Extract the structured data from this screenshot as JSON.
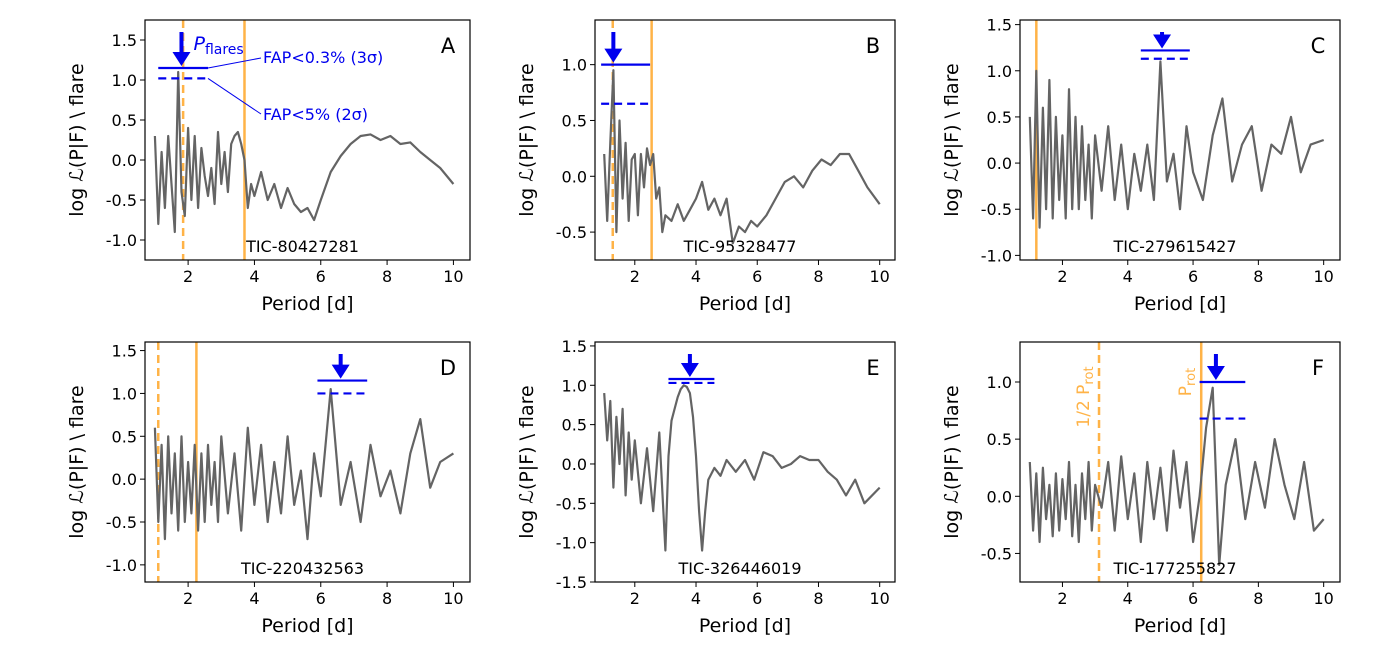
{
  "chart_data": [
    {
      "type": "line",
      "panel_letter": "A",
      "target": "TIC-80427281",
      "xlabel": "Period [d]",
      "ylabel": "log ℒ(P|F) \\ flare",
      "xlim": [
        0.7,
        10.5
      ],
      "ylim": [
        -1.25,
        1.75
      ],
      "xticks": [
        2,
        4,
        6,
        8,
        10
      ],
      "yticks": [
        -1.0,
        -0.5,
        0.0,
        0.5,
        1.0,
        1.5
      ],
      "periodogram": {
        "x": [
          1.0,
          1.1,
          1.2,
          1.3,
          1.4,
          1.5,
          1.6,
          1.7,
          1.8,
          1.9,
          2.0,
          2.1,
          2.2,
          2.3,
          2.4,
          2.5,
          2.6,
          2.7,
          2.8,
          2.9,
          3.0,
          3.1,
          3.2,
          3.3,
          3.4,
          3.5,
          3.6,
          3.7,
          3.8,
          3.9,
          4.0,
          4.2,
          4.4,
          4.6,
          4.8,
          5.0,
          5.2,
          5.4,
          5.6,
          5.8,
          6.0,
          6.3,
          6.6,
          6.9,
          7.2,
          7.5,
          7.8,
          8.1,
          8.4,
          8.7,
          9.0,
          9.3,
          9.6,
          10.0
        ],
        "y": [
          0.3,
          -0.8,
          0.1,
          -0.6,
          0.3,
          -0.3,
          -0.9,
          1.1,
          -0.4,
          -0.7,
          0.4,
          -0.5,
          0.3,
          -0.6,
          0.15,
          -0.2,
          -0.45,
          -0.1,
          -0.55,
          0.35,
          -0.3,
          0.1,
          -0.4,
          0.2,
          0.3,
          0.35,
          0.2,
          0.0,
          -0.6,
          -0.3,
          -0.45,
          -0.15,
          -0.5,
          -0.3,
          -0.6,
          -0.35,
          -0.55,
          -0.65,
          -0.6,
          -0.75,
          -0.5,
          -0.15,
          0.05,
          0.2,
          0.3,
          0.32,
          0.25,
          0.3,
          0.2,
          0.22,
          0.1,
          0.0,
          -0.1,
          -0.3
        ]
      },
      "fap_3sigma": 1.15,
      "fap_2sigma": 1.02,
      "fap_span": [
        1.1,
        2.6
      ],
      "p_flares": 1.8,
      "p_rot_solid": 3.7,
      "p_rot_dashed": 1.85,
      "annotations": {
        "p_flares": "P",
        "p_flares_sub": "flares",
        "fap_3sigma": "FAP<0.3% (3σ)",
        "fap_2sigma": "FAP<5% (2σ)"
      }
    },
    {
      "type": "line",
      "panel_letter": "B",
      "target": "TIC-95328477",
      "xlabel": "Period [d]",
      "ylabel": "log ℒ(P|F) \\ flare",
      "xlim": [
        0.7,
        10.5
      ],
      "ylim": [
        -0.75,
        1.4
      ],
      "xticks": [
        2,
        4,
        6,
        8,
        10
      ],
      "yticks": [
        -0.5,
        0.0,
        0.5,
        1.0
      ],
      "periodogram": {
        "x": [
          1.0,
          1.1,
          1.2,
          1.3,
          1.4,
          1.5,
          1.6,
          1.7,
          1.8,
          1.9,
          2.0,
          2.1,
          2.2,
          2.3,
          2.4,
          2.5,
          2.6,
          2.7,
          2.8,
          2.9,
          3.0,
          3.2,
          3.4,
          3.6,
          3.8,
          4.0,
          4.2,
          4.4,
          4.6,
          4.8,
          5.0,
          5.2,
          5.4,
          5.6,
          5.8,
          6.0,
          6.3,
          6.6,
          6.9,
          7.2,
          7.5,
          7.8,
          8.1,
          8.4,
          8.7,
          9.0,
          9.3,
          9.6,
          10.0
        ],
        "y": [
          0.2,
          -0.4,
          0.3,
          0.95,
          -0.5,
          0.5,
          -0.2,
          0.3,
          -0.4,
          0.15,
          0.2,
          -0.35,
          0.2,
          -0.1,
          0.25,
          0.1,
          0.2,
          -0.2,
          -0.1,
          -0.5,
          -0.35,
          -0.4,
          -0.25,
          -0.4,
          -0.3,
          -0.2,
          -0.05,
          -0.3,
          -0.2,
          -0.35,
          -0.2,
          -0.6,
          -0.45,
          -0.5,
          -0.4,
          -0.45,
          -0.35,
          -0.2,
          -0.05,
          0.0,
          -0.1,
          0.05,
          0.15,
          0.1,
          0.2,
          0.2,
          0.05,
          -0.1,
          -0.25
        ]
      },
      "fap_3sigma": 1.0,
      "fap_2sigma": 0.65,
      "fap_span": [
        0.9,
        2.5
      ],
      "p_flares": 1.3,
      "p_rot_solid": 2.55,
      "p_rot_dashed": 1.28
    },
    {
      "type": "line",
      "panel_letter": "C",
      "target": "TIC-279615427",
      "xlabel": "Period [d]",
      "ylabel": "log ℒ(P|F) \\ flare",
      "xlim": [
        0.7,
        10.5
      ],
      "ylim": [
        -1.05,
        1.55
      ],
      "xticks": [
        2,
        4,
        6,
        8,
        10
      ],
      "yticks": [
        -1.0,
        -0.5,
        0.0,
        0.5,
        1.0,
        1.5
      ],
      "periodogram": {
        "x": [
          1.0,
          1.1,
          1.2,
          1.3,
          1.4,
          1.5,
          1.6,
          1.7,
          1.8,
          1.9,
          2.0,
          2.1,
          2.2,
          2.3,
          2.4,
          2.5,
          2.6,
          2.7,
          2.8,
          2.9,
          3.0,
          3.2,
          3.4,
          3.6,
          3.8,
          4.0,
          4.2,
          4.4,
          4.6,
          4.8,
          5.0,
          5.2,
          5.4,
          5.6,
          5.8,
          6.0,
          6.3,
          6.6,
          6.9,
          7.2,
          7.5,
          7.8,
          8.1,
          8.4,
          8.7,
          9.0,
          9.3,
          9.6,
          10.0
        ],
        "y": [
          0.5,
          -0.6,
          1.0,
          -0.7,
          0.6,
          -0.5,
          0.9,
          -0.6,
          0.5,
          -0.4,
          0.3,
          -0.6,
          0.8,
          -0.5,
          0.5,
          -0.5,
          0.4,
          -0.4,
          0.2,
          -0.6,
          0.3,
          -0.3,
          0.4,
          -0.4,
          0.2,
          -0.5,
          0.1,
          -0.3,
          0.2,
          -0.4,
          1.1,
          -0.2,
          0.1,
          -0.5,
          0.4,
          -0.1,
          -0.4,
          0.3,
          0.7,
          -0.2,
          0.2,
          0.4,
          -0.3,
          0.2,
          0.1,
          0.5,
          -0.1,
          0.2,
          0.25
        ]
      },
      "fap_3sigma": 1.22,
      "fap_2sigma": 1.13,
      "fap_span": [
        4.4,
        5.9
      ],
      "p_flares": 5.05,
      "p_rot_solid": 1.2,
      "p_rot_dashed": null
    },
    {
      "type": "line",
      "panel_letter": "D",
      "target": "TIC-220432563",
      "xlabel": "Period [d]",
      "ylabel": "log ℒ(P|F) \\ flare",
      "xlim": [
        0.7,
        10.5
      ],
      "ylim": [
        -1.2,
        1.6
      ],
      "xticks": [
        2,
        4,
        6,
        8,
        10
      ],
      "yticks": [
        -1.0,
        -0.5,
        0.0,
        0.5,
        1.0,
        1.5
      ],
      "periodogram": {
        "x": [
          1.0,
          1.1,
          1.2,
          1.3,
          1.4,
          1.5,
          1.6,
          1.7,
          1.8,
          1.9,
          2.0,
          2.1,
          2.2,
          2.3,
          2.4,
          2.5,
          2.6,
          2.7,
          2.8,
          2.9,
          3.0,
          3.2,
          3.4,
          3.6,
          3.8,
          4.0,
          4.2,
          4.4,
          4.6,
          4.8,
          5.0,
          5.2,
          5.4,
          5.6,
          5.8,
          6.0,
          6.3,
          6.6,
          6.9,
          7.2,
          7.5,
          7.8,
          8.1,
          8.4,
          8.7,
          9.0,
          9.3,
          9.6,
          10.0
        ],
        "y": [
          0.6,
          -0.5,
          0.4,
          -0.7,
          0.5,
          -0.4,
          0.3,
          -0.6,
          0.5,
          -0.5,
          0.2,
          -0.4,
          0.4,
          -0.6,
          0.3,
          -0.5,
          0.4,
          -0.3,
          0.2,
          -0.5,
          0.5,
          -0.4,
          0.3,
          -0.6,
          0.6,
          -0.3,
          0.4,
          -0.5,
          0.2,
          -0.4,
          0.5,
          -0.3,
          0.1,
          -0.7,
          0.3,
          -0.2,
          1.05,
          -0.3,
          0.2,
          -0.5,
          0.4,
          -0.2,
          0.1,
          -0.4,
          0.3,
          0.7,
          -0.1,
          0.2,
          0.3
        ]
      },
      "fap_3sigma": 1.15,
      "fap_2sigma": 1.0,
      "fap_span": [
        5.9,
        7.4
      ],
      "p_flares": 6.6,
      "p_rot_solid": 2.25,
      "p_rot_dashed": 1.1
    },
    {
      "type": "line",
      "panel_letter": "E",
      "target": "TIC-326446019",
      "xlabel": "Period [d]",
      "ylabel": "log ℒ(P|F) \\ flare",
      "xlim": [
        0.7,
        10.5
      ],
      "ylim": [
        -1.5,
        1.55
      ],
      "xticks": [
        2,
        4,
        6,
        8,
        10
      ],
      "yticks": [
        -1.5,
        -1.0,
        -0.5,
        0.0,
        0.5,
        1.0,
        1.5
      ],
      "periodogram": {
        "x": [
          1.0,
          1.1,
          1.2,
          1.3,
          1.4,
          1.5,
          1.6,
          1.7,
          1.8,
          1.9,
          2.0,
          2.2,
          2.4,
          2.6,
          2.8,
          3.0,
          3.1,
          3.2,
          3.3,
          3.4,
          3.5,
          3.6,
          3.7,
          3.8,
          3.9,
          4.0,
          4.1,
          4.2,
          4.3,
          4.4,
          4.6,
          4.8,
          5.0,
          5.3,
          5.6,
          5.9,
          6.2,
          6.5,
          6.8,
          7.1,
          7.4,
          7.7,
          8.0,
          8.3,
          8.6,
          8.9,
          9.2,
          9.5,
          10.0
        ],
        "y": [
          0.9,
          0.3,
          0.8,
          -0.3,
          0.6,
          0.0,
          0.7,
          -0.4,
          0.4,
          -0.2,
          0.3,
          -0.5,
          0.2,
          -0.6,
          0.4,
          -1.1,
          0.1,
          0.55,
          0.7,
          0.85,
          0.95,
          1.0,
          0.98,
          0.9,
          0.6,
          0.1,
          -0.6,
          -1.1,
          -0.6,
          -0.2,
          -0.05,
          -0.15,
          0.05,
          -0.1,
          0.05,
          -0.2,
          0.15,
          0.1,
          -0.05,
          0.0,
          0.1,
          0.05,
          0.05,
          -0.1,
          -0.2,
          -0.4,
          -0.2,
          -0.5,
          -0.3
        ]
      },
      "fap_3sigma": 1.08,
      "fap_2sigma": 1.03,
      "fap_span": [
        3.1,
        4.6
      ],
      "p_flares": 3.8,
      "p_rot_solid": null,
      "p_rot_dashed": null
    },
    {
      "type": "line",
      "panel_letter": "F",
      "target": "TIC-177255827",
      "xlabel": "Period [d]",
      "ylabel": "log ℒ(P|F) \\ flare",
      "xlim": [
        0.7,
        10.5
      ],
      "ylim": [
        -0.75,
        1.35
      ],
      "xticks": [
        2,
        4,
        6,
        8,
        10
      ],
      "yticks": [
        -0.5,
        0.0,
        0.5,
        1.0
      ],
      "periodogram": {
        "x": [
          1.0,
          1.1,
          1.2,
          1.3,
          1.4,
          1.5,
          1.6,
          1.7,
          1.8,
          1.9,
          2.0,
          2.1,
          2.2,
          2.3,
          2.4,
          2.5,
          2.6,
          2.7,
          2.8,
          2.9,
          3.0,
          3.2,
          3.4,
          3.6,
          3.8,
          4.0,
          4.2,
          4.4,
          4.6,
          4.8,
          5.0,
          5.2,
          5.4,
          5.6,
          5.8,
          6.0,
          6.2,
          6.4,
          6.6,
          6.8,
          7.0,
          7.3,
          7.6,
          7.9,
          8.2,
          8.5,
          8.8,
          9.1,
          9.4,
          9.7,
          10.0
        ],
        "y": [
          0.3,
          -0.3,
          0.2,
          -0.4,
          0.25,
          -0.2,
          0.1,
          -0.35,
          0.2,
          -0.3,
          0.15,
          -0.2,
          0.3,
          -0.35,
          0.1,
          -0.4,
          0.2,
          -0.2,
          0.3,
          -0.3,
          0.1,
          -0.1,
          0.3,
          -0.3,
          0.35,
          -0.2,
          0.2,
          -0.4,
          0.3,
          -0.2,
          0.25,
          -0.3,
          0.4,
          -0.1,
          0.3,
          -0.4,
          0.0,
          0.6,
          0.95,
          -0.6,
          0.1,
          0.5,
          -0.2,
          0.3,
          -0.1,
          0.5,
          0.1,
          -0.2,
          0.3,
          -0.3,
          -0.2
        ]
      },
      "fap_3sigma": 1.0,
      "fap_2sigma": 0.68,
      "fap_span": [
        6.2,
        7.6
      ],
      "p_flares": 6.7,
      "p_rot_solid": 6.25,
      "p_rot_dashed": 3.12,
      "annotations": {
        "half_prot": "1/2 P",
        "half_prot_sub": "rot",
        "prot": "P",
        "prot_sub": "rot"
      }
    }
  ]
}
